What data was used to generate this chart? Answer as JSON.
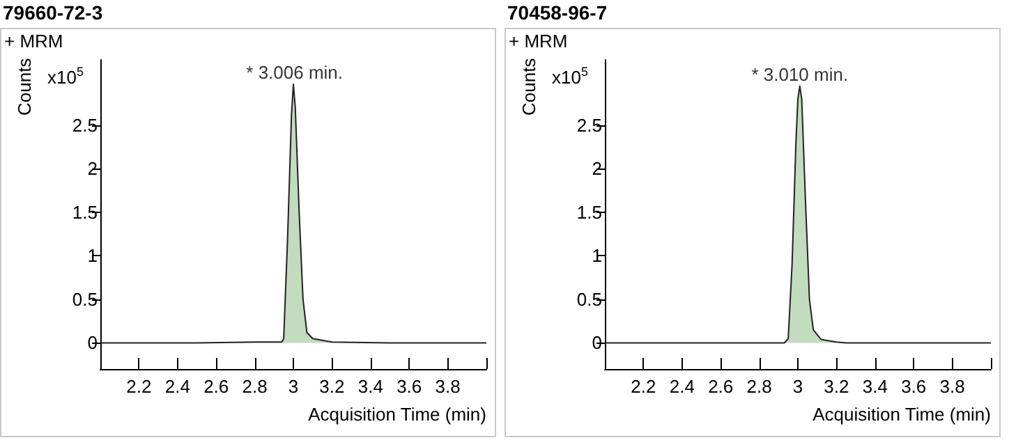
{
  "chart_data": [
    {
      "type": "area",
      "title": "79660-72-3",
      "xlabel": "Acquisition Time (min)",
      "ylabel": "Counts",
      "annotations": [
        "+ MRM",
        "x10$^{5}$",
        {
          "text": "* 3.006 min.",
          "x": 3.006,
          "y": 2.97
        }
      ],
      "series": [
        {
          "color": "#c3dbbf",
          "x": [
            2.0,
            2.5,
            2.8,
            2.94,
            2.95,
            2.97,
            2.99,
            3.0,
            3.01,
            3.03,
            3.05,
            3.07,
            3.1,
            3.2,
            3.5,
            4.0
          ],
          "values": [
            0.0,
            0.0,
            0.01,
            0.01,
            0.05,
            1.2,
            2.6,
            2.97,
            2.7,
            1.5,
            0.5,
            0.12,
            0.05,
            0.01,
            0.0,
            0.0
          ]
        }
      ],
      "xlim": [
        2.0,
        4.0
      ],
      "xticks": [
        2.2,
        2.4,
        2.6,
        2.8,
        3,
        3.2,
        3.4,
        3.6,
        3.8,
        {
          "value": 4.0,
          "label": null
        }
      ],
      "ylim": [
        -0.3,
        3.25
      ],
      "yticks": [
        0,
        0.5,
        1,
        1.5,
        2,
        2.5
      ],
      "grid": false
    },
    {
      "type": "area",
      "title": "70458-96-7",
      "xlabel": "Acquisition Time (min)",
      "ylabel": "Counts",
      "annotations": [
        "+ MRM",
        "x10$^{5}$",
        {
          "text": "* 3.010 min.",
          "x": 3.01,
          "y": 2.95
        }
      ],
      "series": [
        {
          "color": "#c3dbbf",
          "x": [
            2.0,
            2.5,
            2.93,
            2.95,
            2.97,
            2.99,
            3.0,
            3.01,
            3.02,
            3.04,
            3.06,
            3.08,
            3.12,
            3.2,
            3.25,
            4.0
          ],
          "values": [
            0.0,
            0.0,
            0.0,
            0.05,
            0.9,
            2.3,
            2.8,
            2.95,
            2.8,
            1.6,
            0.5,
            0.15,
            0.04,
            0.01,
            0.0,
            0.0
          ]
        }
      ],
      "xlim": [
        2.0,
        4.0
      ],
      "xticks": [
        2.2,
        2.4,
        2.6,
        2.8,
        3,
        3.2,
        3.4,
        3.6,
        3.8,
        {
          "value": 4.0,
          "label": null
        }
      ],
      "ylim": [
        -0.3,
        3.25
      ],
      "yticks": [
        0,
        0.5,
        1,
        1.5,
        2,
        2.5
      ],
      "grid": false
    }
  ]
}
